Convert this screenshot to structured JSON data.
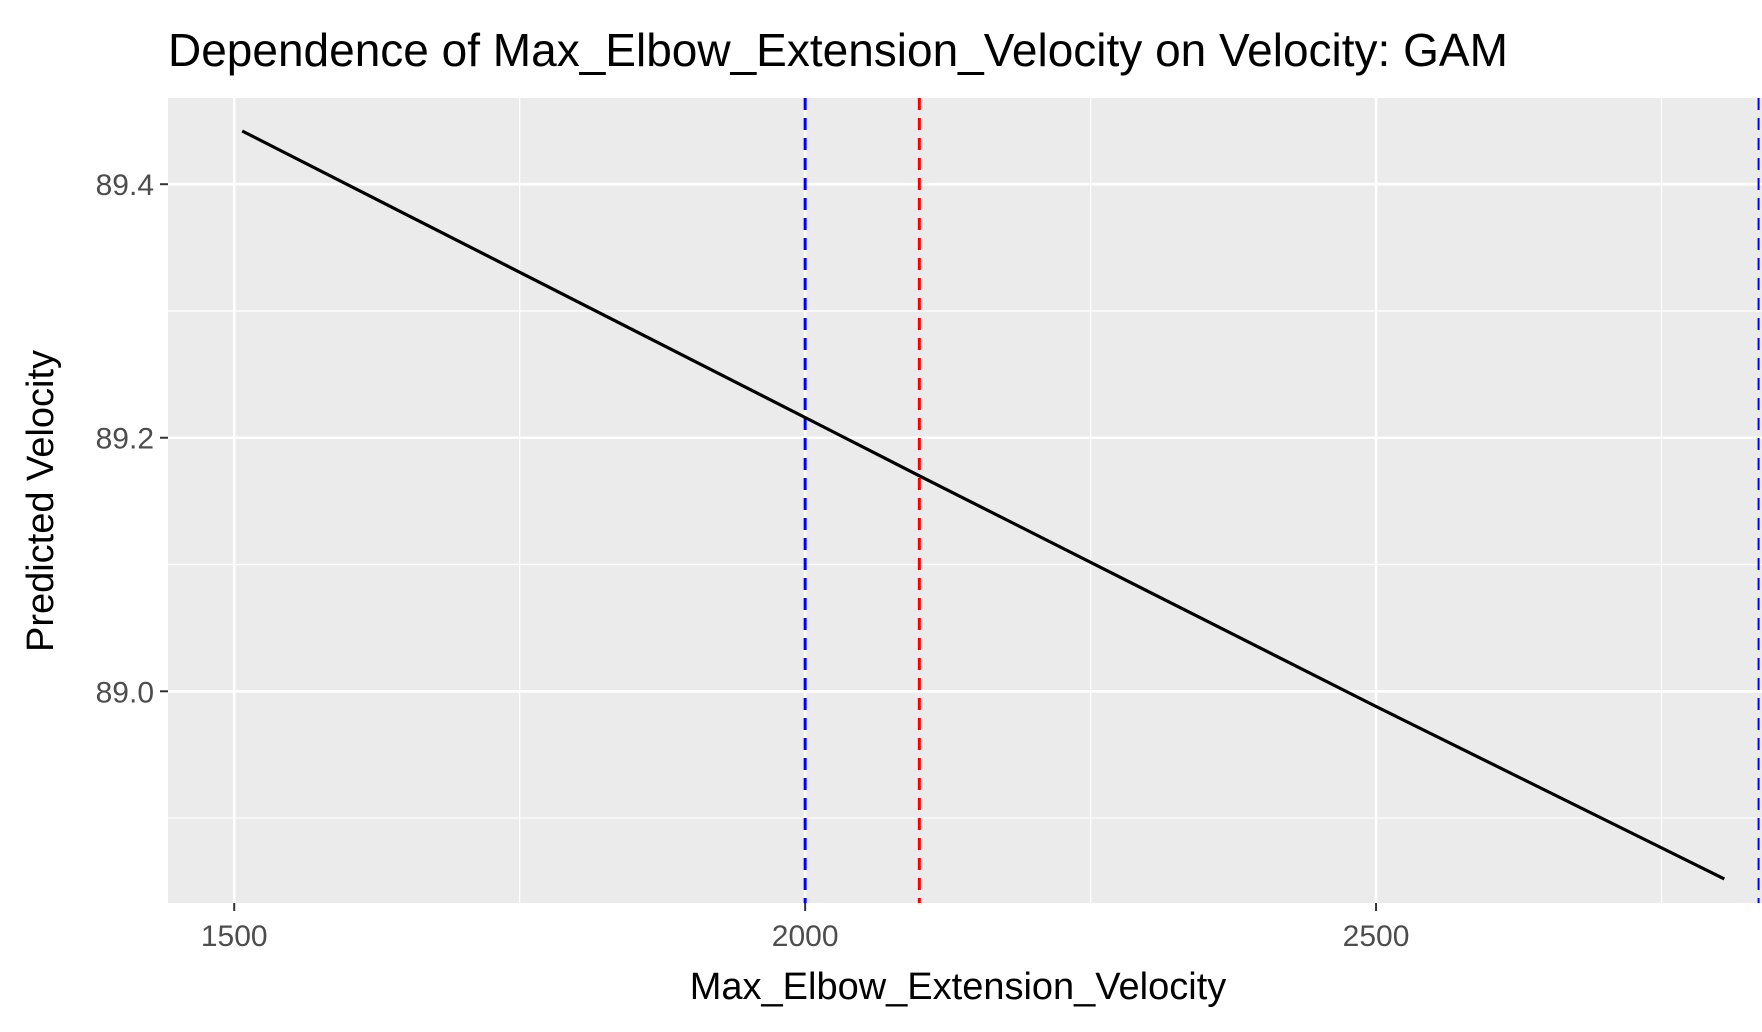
{
  "chart_data": {
    "type": "line",
    "title": "Dependence of Max_Elbow_Extension_Velocity on Velocity: GAM",
    "xlabel": "Max_Elbow_Extension_Velocity",
    "ylabel": "Predicted Velocity",
    "xlim": [
      1442,
      2838
    ],
    "ylim": [
      88.833,
      89.468
    ],
    "x_ticks": [
      {
        "value": 1500,
        "label": "1500"
      },
      {
        "value": 2000,
        "label": "2000"
      },
      {
        "value": 2500,
        "label": "2500"
      }
    ],
    "x_minor_ticks": [
      1750,
      2250,
      2750
    ],
    "y_ticks": [
      {
        "value": 89.0,
        "label": "89.0"
      },
      {
        "value": 89.2,
        "label": "89.2"
      },
      {
        "value": 89.4,
        "label": "89.4"
      }
    ],
    "y_minor_ticks": [
      88.9,
      89.1,
      89.3
    ],
    "grid": true,
    "background": "#ebebeb",
    "series": [
      {
        "color": "#000000",
        "points": [
          {
            "x": 1507,
            "y": 89.442
          },
          {
            "x": 2000,
            "y": 89.216
          },
          {
            "x": 2100,
            "y": 89.17
          },
          {
            "x": 2500,
            "y": 88.988
          },
          {
            "x": 2805,
            "y": 88.852
          }
        ]
      }
    ],
    "reference_lines": [
      {
        "x": 2000,
        "color": "#0000ff",
        "style": "dashed"
      },
      {
        "x": 2100,
        "color": "#ff0000",
        "style": "dashed"
      },
      {
        "x": 2835,
        "color": "#0000ff",
        "style": "dashed"
      }
    ]
  }
}
